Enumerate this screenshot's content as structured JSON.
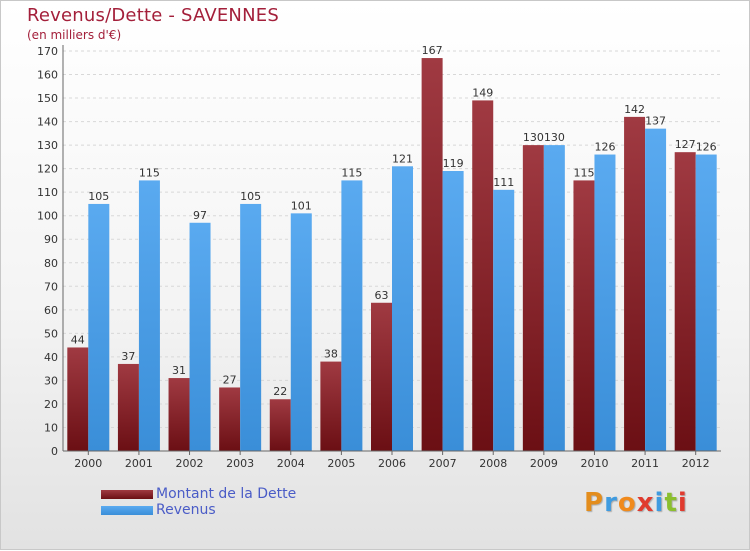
{
  "title": "Revenus/Dette - SAVENNES",
  "subtitle": "(en milliers d'€)",
  "colors": {
    "debt": "#6b0f14",
    "debt_light": "#a03a42",
    "revenue": "#3a8ed8",
    "revenue_light": "#5aaaf0",
    "title": "#a31f3a",
    "legend_text": "#4a5cc7"
  },
  "legend": {
    "position": "bottom-left",
    "items": [
      {
        "label": "Montant de la Dette",
        "icon": "legend-swatch-dette"
      },
      {
        "label": "Revenus",
        "icon": "legend-swatch-revenus"
      }
    ]
  },
  "logo": {
    "text": "Proxiti",
    "letter_colors": [
      "#e38d1d",
      "#3f9be0",
      "#f08a1c",
      "#e03b2f",
      "#3f9be0",
      "#8bbf2e",
      "#e03b2f"
    ]
  },
  "chart_data": {
    "type": "bar",
    "categories": [
      "2000",
      "2001",
      "2002",
      "2003",
      "2004",
      "2005",
      "2006",
      "2007",
      "2008",
      "2009",
      "2010",
      "2011",
      "2012"
    ],
    "series": [
      {
        "name": "Montant de la Dette",
        "values": [
          44,
          37,
          31,
          27,
          22,
          38,
          63,
          167,
          149,
          130,
          115,
          142,
          127
        ]
      },
      {
        "name": "Revenus",
        "values": [
          105,
          115,
          97,
          105,
          101,
          115,
          121,
          119,
          111,
          130,
          126,
          137,
          126
        ]
      }
    ],
    "ylim": [
      0,
      170
    ],
    "ytick_step": 10,
    "grid": true,
    "title": "Revenus/Dette - SAVENNES",
    "ylabel": "(en milliers d'€)",
    "xlabel": ""
  }
}
